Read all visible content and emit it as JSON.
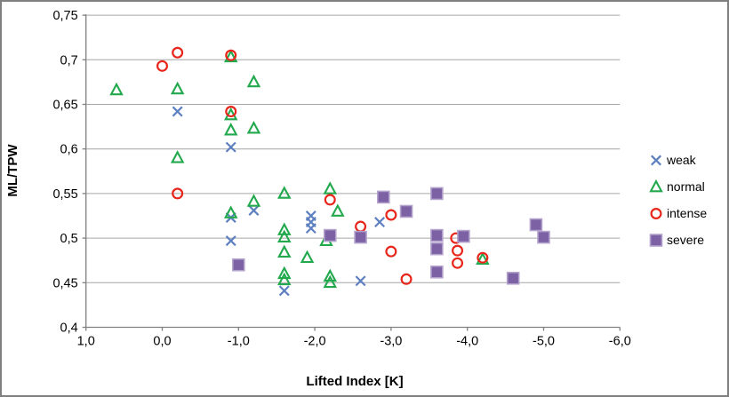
{
  "chart_data": {
    "type": "scatter",
    "title": "",
    "xlabel": "Lifted Index [K]",
    "ylabel": "ML/TPW",
    "xlim": [
      1.0,
      -6.0
    ],
    "ylim": [
      0.4,
      0.75
    ],
    "grid": "horizontal",
    "legend_position": "right",
    "axis_color": "#808080",
    "gridline_color": "#a6a6a6",
    "xticks": [
      {
        "value": 1.0,
        "label": "1,0"
      },
      {
        "value": 0.0,
        "label": "0,0"
      },
      {
        "value": -1.0,
        "label": "-1,0"
      },
      {
        "value": -2.0,
        "label": "-2,0"
      },
      {
        "value": -3.0,
        "label": "-3,0"
      },
      {
        "value": -4.0,
        "label": "-4,0"
      },
      {
        "value": -5.0,
        "label": "-5,0"
      },
      {
        "value": -6.0,
        "label": "-6,0"
      }
    ],
    "yticks": [
      {
        "value": 0.75,
        "label": "0,75"
      },
      {
        "value": 0.7,
        "label": "0,7"
      },
      {
        "value": 0.65,
        "label": "0,65"
      },
      {
        "value": 0.6,
        "label": "0,6"
      },
      {
        "value": 0.55,
        "label": "0,55"
      },
      {
        "value": 0.5,
        "label": "0,5"
      },
      {
        "value": 0.45,
        "label": "0,45"
      },
      {
        "value": 0.4,
        "label": "0,4"
      }
    ],
    "series": [
      {
        "name": "weak",
        "marker": "x",
        "color": "#5e80c1",
        "points": [
          [
            -0.2,
            0.642
          ],
          [
            -0.9,
            0.602
          ],
          [
            -0.9,
            0.523
          ],
          [
            -1.2,
            0.531
          ],
          [
            -0.9,
            0.497
          ],
          [
            -1.6,
            0.441
          ],
          [
            -1.95,
            0.525
          ],
          [
            -1.95,
            0.518
          ],
          [
            -1.95,
            0.511
          ],
          [
            -2.6,
            0.452
          ],
          [
            -2.85,
            0.518
          ]
        ]
      },
      {
        "name": "normal",
        "marker": "triangle",
        "color": "#22a94e",
        "points": [
          [
            0.6,
            0.666
          ],
          [
            -0.2,
            0.667
          ],
          [
            -0.2,
            0.59
          ],
          [
            -0.9,
            0.703
          ],
          [
            -0.9,
            0.638
          ],
          [
            -0.9,
            0.621
          ],
          [
            -1.2,
            0.675
          ],
          [
            -1.2,
            0.623
          ],
          [
            -0.9,
            0.528
          ],
          [
            -1.2,
            0.541
          ],
          [
            -1.6,
            0.55
          ],
          [
            -2.2,
            0.555
          ],
          [
            -2.3,
            0.53
          ],
          [
            -1.6,
            0.509
          ],
          [
            -1.6,
            0.501
          ],
          [
            -2.15,
            0.497
          ],
          [
            -1.6,
            0.484
          ],
          [
            -1.9,
            0.478
          ],
          [
            -1.6,
            0.46
          ],
          [
            -1.6,
            0.453
          ],
          [
            -2.2,
            0.457
          ],
          [
            -2.2,
            0.45
          ],
          [
            -4.2,
            0.476
          ]
        ]
      },
      {
        "name": "intense",
        "marker": "circle",
        "color": "#e8251a",
        "points": [
          [
            0.0,
            0.693
          ],
          [
            -0.2,
            0.708
          ],
          [
            -0.9,
            0.705
          ],
          [
            -0.9,
            0.642
          ],
          [
            -0.2,
            0.55
          ],
          [
            -2.2,
            0.543
          ],
          [
            -2.6,
            0.513
          ],
          [
            -3.0,
            0.526
          ],
          [
            -3.0,
            0.485
          ],
          [
            -3.2,
            0.454
          ],
          [
            -3.85,
            0.5
          ],
          [
            -3.87,
            0.486
          ],
          [
            -3.87,
            0.472
          ],
          [
            -4.2,
            0.478
          ]
        ]
      },
      {
        "name": "severe",
        "marker": "square",
        "color": "#7c61a4",
        "border_color": "#b3a3cc",
        "points": [
          [
            -1.0,
            0.47
          ],
          [
            -2.2,
            0.503
          ],
          [
            -2.6,
            0.501
          ],
          [
            -2.9,
            0.546
          ],
          [
            -3.2,
            0.53
          ],
          [
            -3.6,
            0.55
          ],
          [
            -3.6,
            0.503
          ],
          [
            -3.6,
            0.488
          ],
          [
            -3.6,
            0.462
          ],
          [
            -3.95,
            0.502
          ],
          [
            -4.6,
            0.455
          ],
          [
            -4.9,
            0.515
          ],
          [
            -5.0,
            0.501
          ]
        ]
      }
    ]
  }
}
